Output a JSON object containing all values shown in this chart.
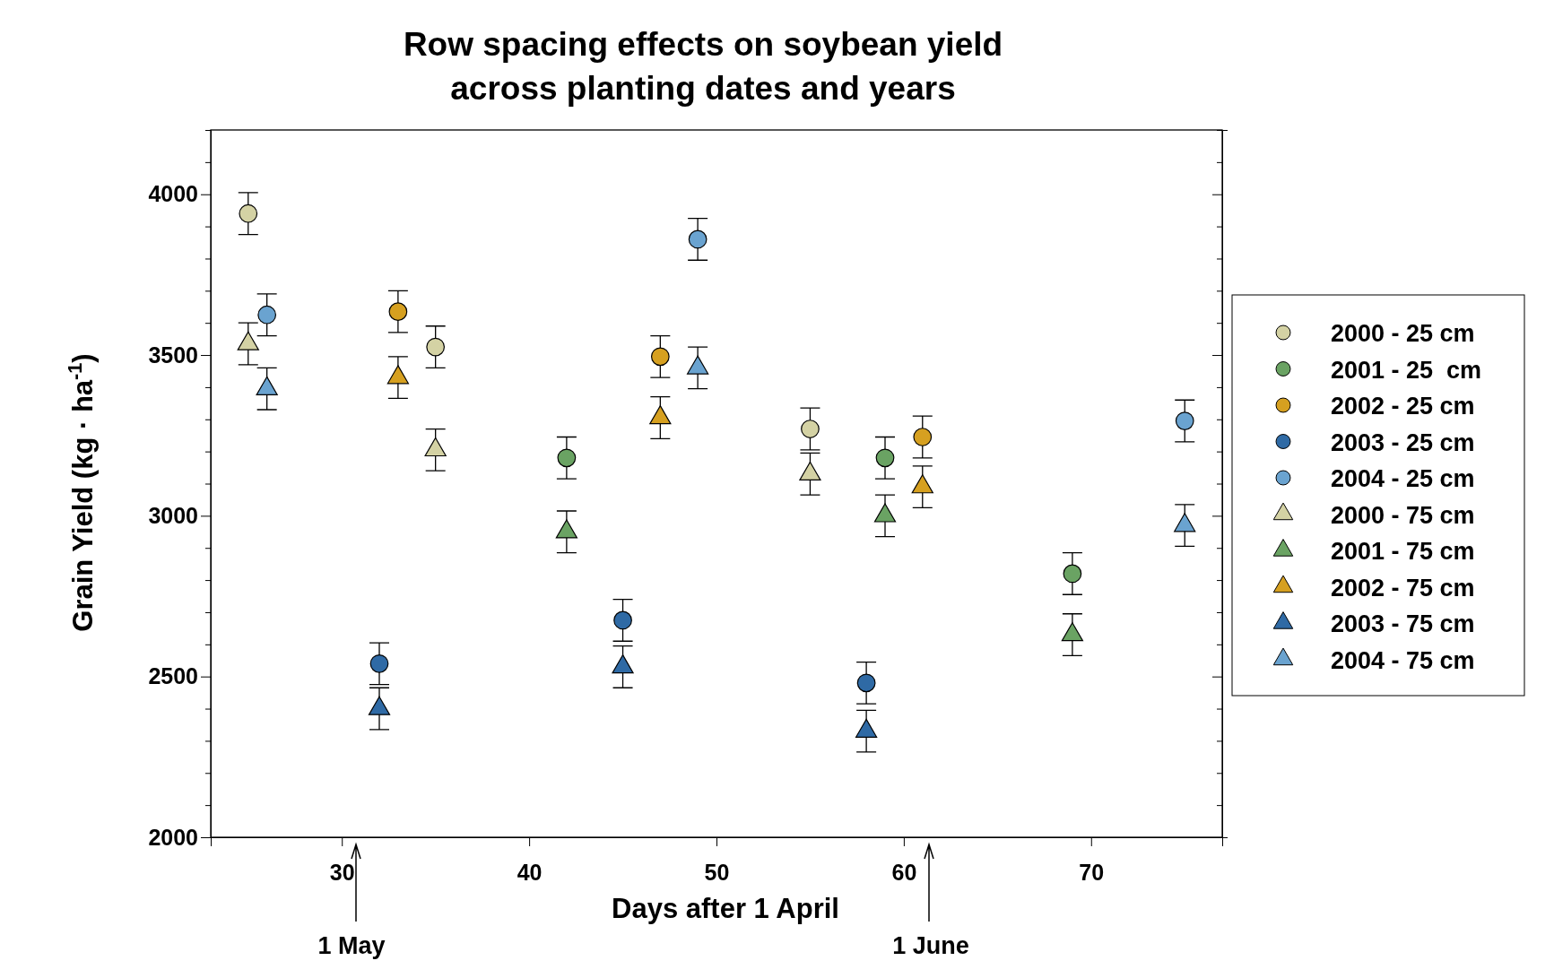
{
  "chart_data": {
    "type": "scatter",
    "title": "Row spacing effects on soybean yield\nacross planting dates and years",
    "xlabel": "Days after 1 April",
    "ylabel": "Grain Yield (kg · ha$^{-1}$)",
    "xlim": [
      23,
      77
    ],
    "xticks": [
      30,
      40,
      50,
      60,
      70
    ],
    "ylim": [
      2000,
      4200
    ],
    "yticks": [
      2000,
      {
        "value": 2100,
        "label": null
      },
      {
        "value": 2200,
        "label": null
      },
      {
        "value": 2300,
        "label": null
      },
      {
        "value": 2400,
        "label": null
      },
      2500,
      {
        "value": 2600,
        "label": null
      },
      {
        "value": 2700,
        "label": null
      },
      {
        "value": 2800,
        "label": null
      },
      {
        "value": 2900,
        "label": null
      },
      3000,
      {
        "value": 3100,
        "label": null
      },
      {
        "value": 3200,
        "label": null
      },
      {
        "value": 3300,
        "label": null
      },
      {
        "value": 3400,
        "label": null
      },
      3500,
      {
        "value": 3600,
        "label": null
      },
      {
        "value": 3700,
        "label": null
      },
      {
        "value": 3800,
        "label": null
      },
      {
        "value": 3900,
        "label": null
      },
      4000,
      {
        "value": 4100,
        "label": null
      },
      {
        "value": 4200,
        "label": null
      }
    ],
    "grid": false,
    "legend": "right",
    "series": [
      {
        "name": "2000 - 25 cm",
        "color": "#d4d2a4",
        "marker": "circle",
        "x": [
          25,
          35,
          55
        ],
        "values": [
          3940,
          3525,
          3270
        ],
        "errors": [
          65,
          65,
          65
        ]
      },
      {
        "name": "2001 - 25  cm",
        "color": "#6aa363",
        "marker": "circle",
        "x": [
          42,
          59,
          69
        ],
        "values": [
          3180,
          3180,
          2820
        ],
        "errors": [
          65,
          65,
          65
        ]
      },
      {
        "name": "2002 - 25 cm",
        "color": "#d6a020",
        "marker": "circle",
        "x": [
          33,
          47,
          61
        ],
        "values": [
          3635,
          3495,
          3245
        ],
        "errors": [
          65,
          65,
          65
        ]
      },
      {
        "name": "2003 - 25 cm",
        "color": "#2f6aa5",
        "marker": "circle",
        "x": [
          32,
          45,
          58
        ],
        "values": [
          2540,
          2675,
          2480
        ],
        "errors": [
          65,
          65,
          65
        ]
      },
      {
        "name": "2004 - 25 cm",
        "color": "#6aa3d0",
        "marker": "circle",
        "x": [
          26,
          49,
          75
        ],
        "values": [
          3625,
          3860,
          3295
        ],
        "errors": [
          65,
          65,
          65
        ]
      },
      {
        "name": "2000 - 75 cm",
        "color": "#d4d2a4",
        "marker": "triangle",
        "x": [
          25,
          35,
          55
        ],
        "values": [
          3535,
          3205,
          3130
        ],
        "errors": [
          65,
          65,
          65
        ]
      },
      {
        "name": "2001 - 75 cm",
        "color": "#6aa363",
        "marker": "triangle",
        "x": [
          42,
          59,
          69
        ],
        "values": [
          2950,
          3000,
          2630
        ],
        "errors": [
          65,
          65,
          65
        ]
      },
      {
        "name": "2002 - 75 cm",
        "color": "#d6a020",
        "marker": "triangle",
        "x": [
          33,
          47,
          61
        ],
        "values": [
          3430,
          3305,
          3090
        ],
        "errors": [
          65,
          65,
          65
        ]
      },
      {
        "name": "2003 - 75 cm",
        "color": "#2f6aa5",
        "marker": "triangle",
        "x": [
          32,
          45,
          58
        ],
        "values": [
          2400,
          2530,
          2330
        ],
        "errors": [
          65,
          65,
          65
        ]
      },
      {
        "name": "2004 - 75 cm",
        "color": "#6aa3d0",
        "marker": "triangle",
        "x": [
          26,
          49,
          75
        ],
        "values": [
          3395,
          3460,
          2970
        ],
        "errors": [
          65,
          65,
          65
        ]
      }
    ],
    "annotations": [
      "1 May",
      "1 June"
    ]
  }
}
